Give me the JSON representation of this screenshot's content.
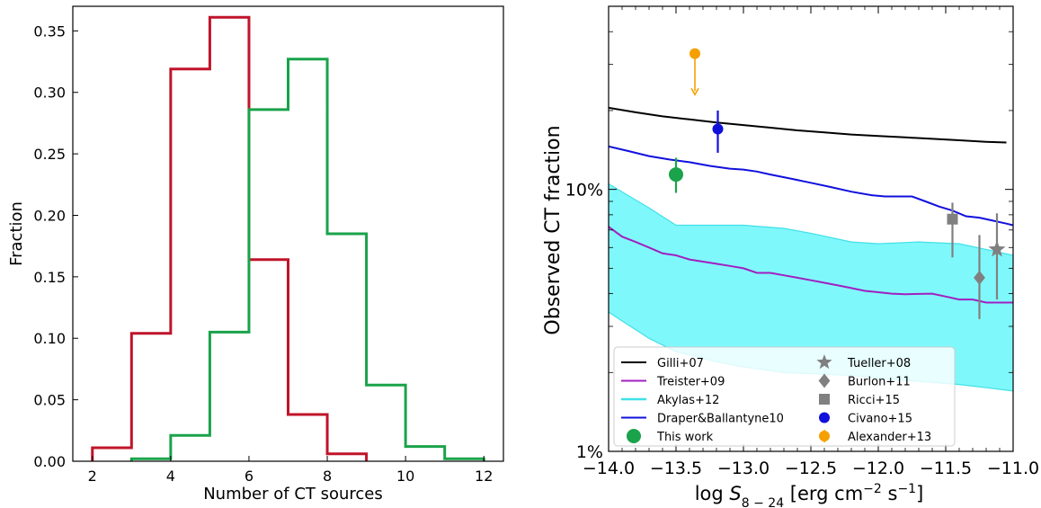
{
  "chart_data": [
    {
      "type": "bar",
      "subtype": "step-histogram",
      "title": "",
      "xlabel": "Number of CT sources",
      "ylabel": "Fraction",
      "xlim": [
        1.5,
        12.5
      ],
      "ylim": [
        0.0,
        0.37
      ],
      "x_ticks": [
        2,
        4,
        6,
        8,
        10,
        12
      ],
      "x_tick_labels": [
        "2",
        "4",
        "6",
        "8",
        "10",
        "12"
      ],
      "y_ticks": [
        0.0,
        0.05,
        0.1,
        0.15,
        0.2,
        0.25,
        0.3,
        0.35
      ],
      "y_tick_labels": [
        "0.00",
        "0.05",
        "0.10",
        "0.15",
        "0.20",
        "0.25",
        "0.30",
        "0.35"
      ],
      "grid": false,
      "series": [
        {
          "color": "#c0142a",
          "bin_edges": [
            2,
            3,
            4,
            5,
            6,
            7,
            8,
            9
          ],
          "values": [
            0.011,
            0.104,
            0.319,
            0.361,
            0.164,
            0.038,
            0.006
          ]
        },
        {
          "color": "#1aa34a",
          "bin_edges": [
            3,
            4,
            5,
            6,
            7,
            8,
            9,
            10,
            11,
            12
          ],
          "values": [
            0.002,
            0.021,
            0.105,
            0.286,
            0.327,
            0.185,
            0.062,
            0.012,
            0.002
          ]
        }
      ]
    },
    {
      "type": "line",
      "title": "",
      "xlabel": "log S8-24 [erg cm-2 s-1]",
      "ylabel": "Observed CT fraction",
      "y_scale": "log",
      "xlim": [
        -14.0,
        -11.0
      ],
      "ylim": [
        0.01,
        0.5
      ],
      "x_ticks": [
        -14.0,
        -13.5,
        -13.0,
        -12.5,
        -12.0,
        -11.5,
        -11.0
      ],
      "x_tick_labels": [
        "−14.0",
        "−13.5",
        "−13.0",
        "−12.5",
        "−12.0",
        "−11.5",
        "−11.0"
      ],
      "y_ticks": [
        0.01,
        0.1
      ],
      "y_tick_labels": [
        "1%",
        "10%"
      ],
      "grid": false,
      "legend_position": "bottom",
      "series": [
        {
          "name": "Gilli+07",
          "style": "line",
          "color": "#000000",
          "x": [
            -14.0,
            -13.8,
            -13.6,
            -13.4,
            -13.2,
            -13.0,
            -12.8,
            -12.6,
            -12.4,
            -12.2,
            -12.0,
            -11.8,
            -11.6,
            -11.4,
            -11.2,
            -11.05
          ],
          "y": [
            0.205,
            0.197,
            0.19,
            0.185,
            0.18,
            0.176,
            0.172,
            0.168,
            0.165,
            0.162,
            0.16,
            0.158,
            0.156,
            0.154,
            0.152,
            0.151
          ]
        },
        {
          "name": "Treister+09",
          "style": "line",
          "color": "#a020c0",
          "x": [
            -14.0,
            -13.9,
            -13.8,
            -13.7,
            -13.6,
            -13.5,
            -13.4,
            -13.3,
            -13.2,
            -13.1,
            -13.0,
            -12.9,
            -12.8,
            -12.7,
            -12.6,
            -12.5,
            -12.4,
            -12.3,
            -12.2,
            -12.1,
            -12.0,
            -11.9,
            -11.8,
            -11.7,
            -11.6,
            -11.5,
            -11.4,
            -11.3,
            -11.2,
            -11.1,
            -11.0
          ],
          "y": [
            0.072,
            0.066,
            0.063,
            0.06,
            0.057,
            0.056,
            0.054,
            0.053,
            0.052,
            0.051,
            0.05,
            0.048,
            0.048,
            0.047,
            0.046,
            0.045,
            0.044,
            0.043,
            0.042,
            0.041,
            0.0405,
            0.04,
            0.0398,
            0.0399,
            0.04,
            0.039,
            0.038,
            0.038,
            0.037,
            0.037,
            0.037
          ]
        },
        {
          "name": "Akylas+12",
          "style": "band",
          "color": "#40e0e8",
          "fill_color": "#7ff8fb",
          "x": [
            -14.0,
            -13.7,
            -13.5,
            -13.2,
            -13.0,
            -12.7,
            -12.5,
            -12.2,
            -12.0,
            -11.7,
            -11.4,
            -11.2,
            -11.0
          ],
          "y_low": [
            0.034,
            0.027,
            0.024,
            0.022,
            0.021,
            0.02,
            0.0198,
            0.0195,
            0.019,
            0.0185,
            0.018,
            0.0175,
            0.017
          ],
          "y_high": [
            0.105,
            0.085,
            0.073,
            0.073,
            0.073,
            0.071,
            0.068,
            0.063,
            0.062,
            0.063,
            0.062,
            0.059,
            0.056
          ]
        },
        {
          "name": "Draper&Ballantyne10",
          "style": "line",
          "color": "#1010dd",
          "x": [
            -14.0,
            -13.85,
            -13.7,
            -13.55,
            -13.4,
            -13.25,
            -13.1,
            -13.0,
            -12.9,
            -12.8,
            -12.65,
            -12.5,
            -12.35,
            -12.2,
            -12.05,
            -11.95,
            -11.85,
            -11.75,
            -11.65,
            -11.55,
            -11.45,
            -11.35,
            -11.25,
            -11.15,
            -11.05,
            -11.0
          ],
          "y": [
            0.146,
            0.14,
            0.134,
            0.13,
            0.127,
            0.123,
            0.12,
            0.119,
            0.117,
            0.114,
            0.11,
            0.106,
            0.102,
            0.098,
            0.095,
            0.094,
            0.094,
            0.094,
            0.09,
            0.086,
            0.083,
            0.079,
            0.078,
            0.076,
            0.074,
            0.073
          ]
        },
        {
          "name": "This work",
          "style": "marker",
          "marker": "circle-large",
          "color": "#1aa34a",
          "x": [
            -13.5
          ],
          "y": [
            0.114
          ],
          "y_err_low": [
            0.097
          ],
          "y_err_high": [
            0.132
          ]
        },
        {
          "name": "Tueller+08",
          "style": "marker",
          "marker": "star",
          "color": "#808080",
          "x": [
            -11.12
          ],
          "y": [
            0.059
          ],
          "y_err_low": [
            0.038
          ],
          "y_err_high": [
            0.081
          ]
        },
        {
          "name": "Burlon+11",
          "style": "marker",
          "marker": "diamond",
          "color": "#808080",
          "x": [
            -11.25
          ],
          "y": [
            0.046
          ],
          "y_err_low": [
            0.032
          ],
          "y_err_high": [
            0.067
          ]
        },
        {
          "name": "Ricci+15",
          "style": "marker",
          "marker": "square",
          "color": "#808080",
          "x": [
            -11.45
          ],
          "y": [
            0.077
          ],
          "y_err_low": [
            0.055
          ],
          "y_err_high": [
            0.089
          ]
        },
        {
          "name": "Civano+15",
          "style": "marker",
          "marker": "circle",
          "color": "#1010dd",
          "x": [
            -13.19
          ],
          "y": [
            0.17
          ],
          "y_err_low": [
            0.138
          ],
          "y_err_high": [
            0.2
          ]
        },
        {
          "name": "Alexander+13",
          "style": "marker",
          "marker": "circle-upper-limit",
          "color": "#f5a000",
          "x": [
            -13.36
          ],
          "y": [
            0.33
          ],
          "arrow_to": [
            0.23
          ]
        }
      ],
      "legend_columns": [
        [
          "Gilli+07",
          "Treister+09",
          "Akylas+12",
          "Draper&Ballantyne10",
          "This work"
        ],
        [
          "Tueller+08",
          "Burlon+11",
          "Ricci+15",
          "Civano+15",
          "Alexander+13"
        ]
      ]
    }
  ]
}
